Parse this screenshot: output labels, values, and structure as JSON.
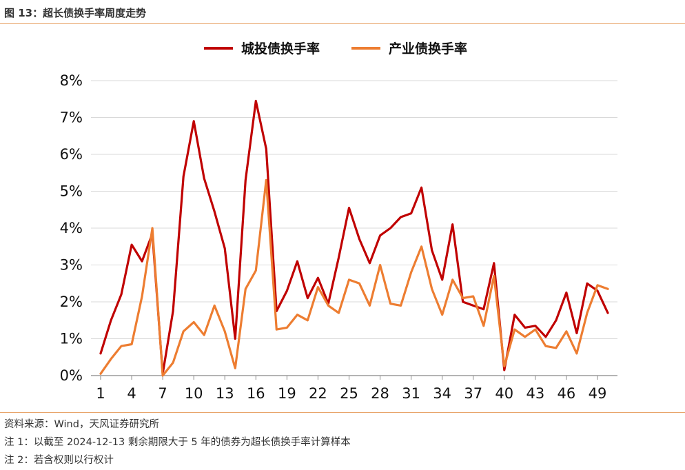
{
  "figure_title": "图 13：超长债换手率周度走势",
  "notes": [
    "资料来源：Wind，天风证券研究所",
    "注 1：以截至 2024-12-13 剩余期限大于 5 年的债券为超长债换手率计算样本",
    "注 2：若含权则以行权计"
  ],
  "colors": {
    "series_1": "#c00000",
    "series_2": "#ed7d31",
    "accent_rule": "#e8a46a"
  },
  "chart_data": {
    "type": "line",
    "title": "",
    "xlabel": "",
    "ylabel": "",
    "x": [
      1,
      2,
      3,
      4,
      5,
      6,
      7,
      8,
      9,
      10,
      11,
      12,
      13,
      14,
      15,
      16,
      17,
      18,
      19,
      20,
      21,
      22,
      23,
      24,
      25,
      26,
      27,
      28,
      29,
      30,
      31,
      32,
      33,
      34,
      35,
      36,
      37,
      38,
      39,
      40,
      41,
      42,
      43,
      44,
      45,
      46,
      47,
      48,
      49,
      50
    ],
    "x_tick_labels": [
      "1",
      "4",
      "7",
      "10",
      "13",
      "16",
      "19",
      "22",
      "25",
      "28",
      "31",
      "34",
      "37",
      "40",
      "43",
      "46",
      "49"
    ],
    "y_tick_labels": [
      "0%",
      "1%",
      "2%",
      "3%",
      "4%",
      "5%",
      "6%",
      "7%",
      "8%"
    ],
    "ylim": [
      0,
      8
    ],
    "y_unit": "%",
    "grid": "horizontal",
    "legend_position": "top-center",
    "series": [
      {
        "name": "城投债换手率",
        "color": "#c00000",
        "values": [
          0.6,
          1.5,
          2.2,
          3.55,
          3.1,
          3.85,
          0.05,
          1.75,
          5.4,
          6.9,
          5.35,
          4.45,
          3.45,
          1.0,
          5.3,
          7.45,
          6.15,
          1.75,
          2.3,
          3.1,
          2.1,
          2.65,
          1.95,
          3.2,
          4.55,
          3.7,
          3.05,
          3.8,
          4.0,
          4.3,
          4.4,
          5.1,
          3.4,
          2.6,
          4.1,
          2.0,
          1.9,
          1.8,
          3.05,
          0.15,
          1.65,
          1.3,
          1.35,
          1.05,
          1.5,
          2.25,
          1.15,
          2.5,
          2.3,
          1.7
        ]
      },
      {
        "name": "产业债换手率",
        "color": "#ed7d31",
        "values": [
          0.05,
          0.45,
          0.8,
          0.85,
          2.15,
          4.0,
          0.0,
          0.35,
          1.2,
          1.45,
          1.1,
          1.9,
          1.2,
          0.2,
          2.35,
          2.85,
          5.3,
          1.25,
          1.3,
          1.65,
          1.5,
          2.4,
          1.9,
          1.7,
          2.6,
          2.5,
          1.9,
          3.0,
          1.95,
          1.9,
          2.8,
          3.5,
          2.35,
          1.65,
          2.6,
          2.1,
          2.15,
          1.35,
          2.7,
          0.25,
          1.25,
          1.05,
          1.25,
          0.8,
          0.75,
          1.2,
          0.6,
          1.7,
          2.45,
          2.35
        ]
      }
    ]
  }
}
